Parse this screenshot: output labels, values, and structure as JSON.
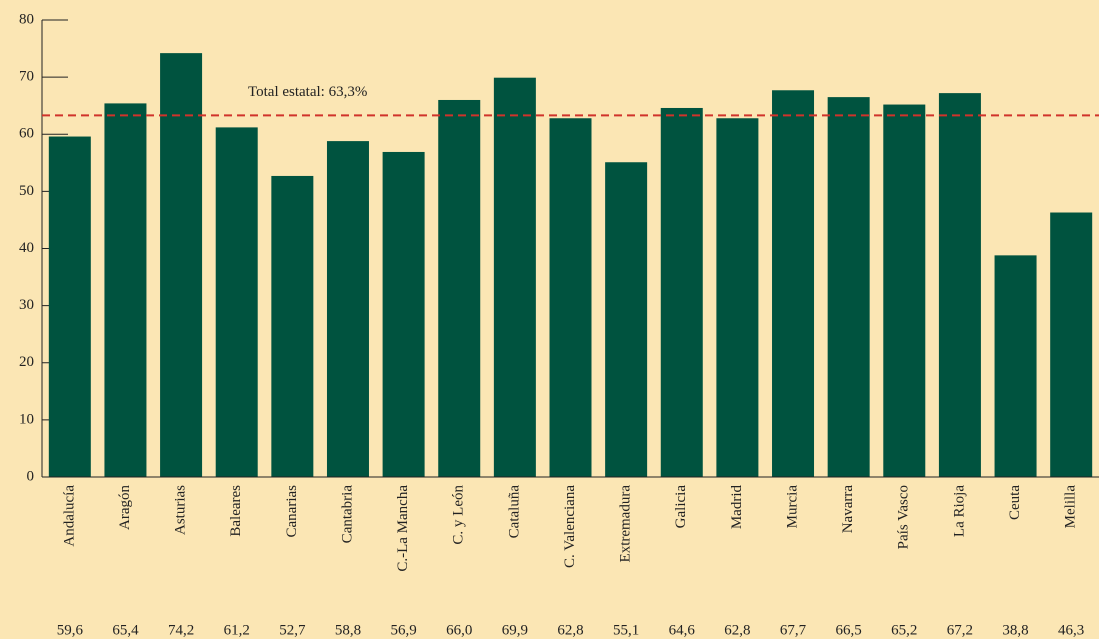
{
  "chart_data": {
    "type": "bar",
    "categories": [
      "Andalucía",
      "Aragón",
      "Asturias",
      "Baleares",
      "Canarias",
      "Cantabria",
      "C.-La Mancha",
      "C. y León",
      "Cataluña",
      "C. Valenciana",
      "Extremadura",
      "Galicia",
      "Madrid",
      "Murcia",
      "Navarra",
      "País Vasco",
      "La Rioja",
      "Ceuta",
      "Melilla"
    ],
    "values": [
      59.6,
      65.4,
      74.2,
      61.2,
      52.7,
      58.8,
      56.9,
      66.0,
      69.9,
      62.8,
      55.1,
      64.6,
      62.8,
      67.7,
      66.5,
      65.2,
      67.2,
      38.8,
      46.3
    ],
    "value_labels": [
      "59,6",
      "65,4",
      "74,2",
      "61,2",
      "52,7",
      "58,8",
      "56,9",
      "66,0",
      "69,9",
      "62,8",
      "55,1",
      "64,6",
      "62,8",
      "67,7",
      "66,5",
      "65,2",
      "67,2",
      "38,8",
      "46,3"
    ],
    "color": "#00533f",
    "ylim": [
      0,
      80
    ],
    "yticks": [
      0,
      10,
      20,
      30,
      40,
      50,
      60,
      70,
      80
    ],
    "reference_line": {
      "value": 63.3,
      "label": "Total estatal: 63,3%",
      "color": "#d0332b"
    }
  }
}
